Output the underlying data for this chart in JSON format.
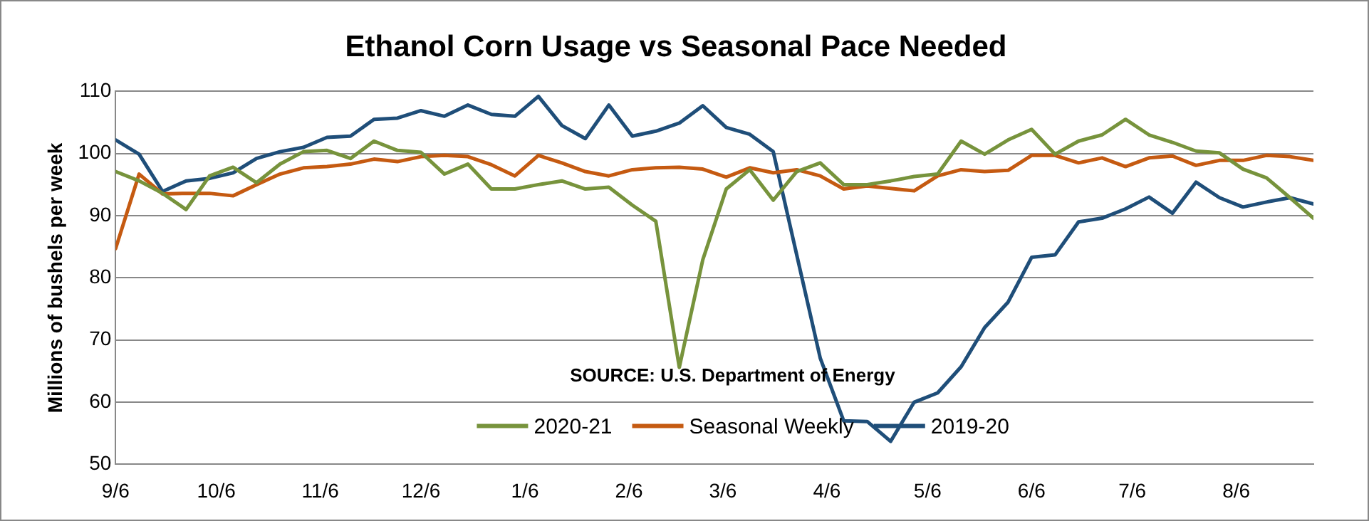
{
  "chart_data": {
    "type": "line",
    "title": "Ethanol Corn Usage vs Seasonal Pace Needed",
    "ylabel": "Millions of bushels per week",
    "x": [
      "2020-09-06",
      "2020-09-13",
      "2020-09-20",
      "2020-09-27",
      "2020-10-04",
      "2020-10-11",
      "2020-10-18",
      "2020-10-25",
      "2020-11-01",
      "2020-11-08",
      "2020-11-15",
      "2020-11-22",
      "2020-11-29",
      "2020-12-06",
      "2020-12-13",
      "2020-12-20",
      "2020-12-27",
      "2021-01-03",
      "2021-01-10",
      "2021-01-17",
      "2021-01-24",
      "2021-01-31",
      "2021-02-07",
      "2021-02-14",
      "2021-02-21",
      "2021-02-28",
      "2021-03-07",
      "2021-03-14",
      "2021-03-21",
      "2021-03-28",
      "2021-04-04",
      "2021-04-11",
      "2021-04-18",
      "2021-04-25",
      "2021-05-02",
      "2021-05-09",
      "2021-05-16",
      "2021-05-23",
      "2021-05-30",
      "2021-06-06",
      "2021-06-13",
      "2021-06-20",
      "2021-06-27",
      "2021-07-04",
      "2021-07-11",
      "2021-07-18",
      "2021-07-25",
      "2021-08-01",
      "2021-08-08",
      "2021-08-15",
      "2021-08-22",
      "2021-08-29"
    ],
    "series": [
      {
        "name": "2020-21",
        "color": "#77933c",
        "values": [
          97.1,
          95.6,
          93.6,
          91,
          96.4,
          97.8,
          95.3,
          98.3,
          100.3,
          100.5,
          99.2,
          102,
          100.5,
          100.2,
          96.7,
          98.3,
          94.3,
          94.3,
          95,
          95.6,
          94.3,
          94.6,
          91.7,
          89.1,
          65.6,
          82.9,
          94.3,
          97.4,
          92.5,
          97.1,
          98.5,
          95,
          95,
          95.6,
          96.3,
          96.7,
          102,
          99.9,
          102.2,
          103.9,
          99.9,
          102,
          103,
          105.5,
          103,
          101.8,
          100.4,
          100.1,
          97.5,
          96.1,
          92.9,
          89.6
        ]
      },
      {
        "name": "Seasonal Weekly",
        "color": "#c55a11",
        "values": [
          84.7,
          96.7,
          93.5,
          93.6,
          93.6,
          93.2,
          95,
          96.7,
          97.7,
          97.9,
          98.3,
          99.1,
          98.7,
          99.5,
          99.7,
          99.5,
          98.2,
          96.4,
          99.7,
          98.5,
          97.1,
          96.4,
          97.4,
          97.7,
          97.8,
          97.5,
          96.2,
          97.7,
          96.9,
          97.4,
          96.4,
          94.3,
          94.8,
          94.4,
          94,
          96.4,
          97.4,
          97.1,
          97.3,
          99.7,
          99.7,
          98.5,
          99.3,
          97.9,
          99.3,
          99.6,
          98.1,
          98.9,
          98.9,
          99.7,
          99.5,
          98.9
        ]
      },
      {
        "name": "2019-20",
        "color": "#1f4e79",
        "values": [
          102.2,
          99.9,
          93.9,
          95.6,
          96,
          96.9,
          99.2,
          100.3,
          101,
          102.6,
          102.8,
          105.5,
          105.7,
          106.9,
          106,
          107.8,
          106.3,
          106,
          109.2,
          104.5,
          102.4,
          107.8,
          102.8,
          103.6,
          104.9,
          107.7,
          104.2,
          103.1,
          100.3,
          83.7,
          67.1,
          57,
          56.9,
          53.7,
          60,
          61.5,
          65.7,
          72,
          76.1,
          83.3,
          83.7,
          89,
          89.6,
          91.1,
          93,
          90.4,
          95.4,
          92.9,
          91.4,
          92.2,
          92.9,
          91.9
        ]
      }
    ],
    "xlim": [
      "2020-09-06",
      "2021-08-29"
    ],
    "xticks": [
      {
        "value": "2020-09-06",
        "label": "9/6"
      },
      {
        "value": "2020-10-06",
        "label": "10/6"
      },
      {
        "value": "2020-11-06",
        "label": "11/6"
      },
      {
        "value": "2020-12-06",
        "label": "12/6"
      },
      {
        "value": "2021-01-06",
        "label": "1/6"
      },
      {
        "value": "2021-02-06",
        "label": "2/6"
      },
      {
        "value": "2021-03-06",
        "label": "3/6"
      },
      {
        "value": "2021-04-06",
        "label": "4/6"
      },
      {
        "value": "2021-05-06",
        "label": "5/6"
      },
      {
        "value": "2021-06-06",
        "label": "6/6"
      },
      {
        "value": "2021-07-06",
        "label": "7/6"
      },
      {
        "value": "2021-08-06",
        "label": "8/6"
      }
    ],
    "ylim": [
      50,
      110
    ],
    "yticks": [
      50,
      60,
      70,
      80,
      90,
      100,
      110
    ],
    "grid": "y",
    "legend": "bottom",
    "marker": "none",
    "line_style": "solid",
    "annotations": [
      "SOURCE: U.S. Department of Energy"
    ]
  }
}
